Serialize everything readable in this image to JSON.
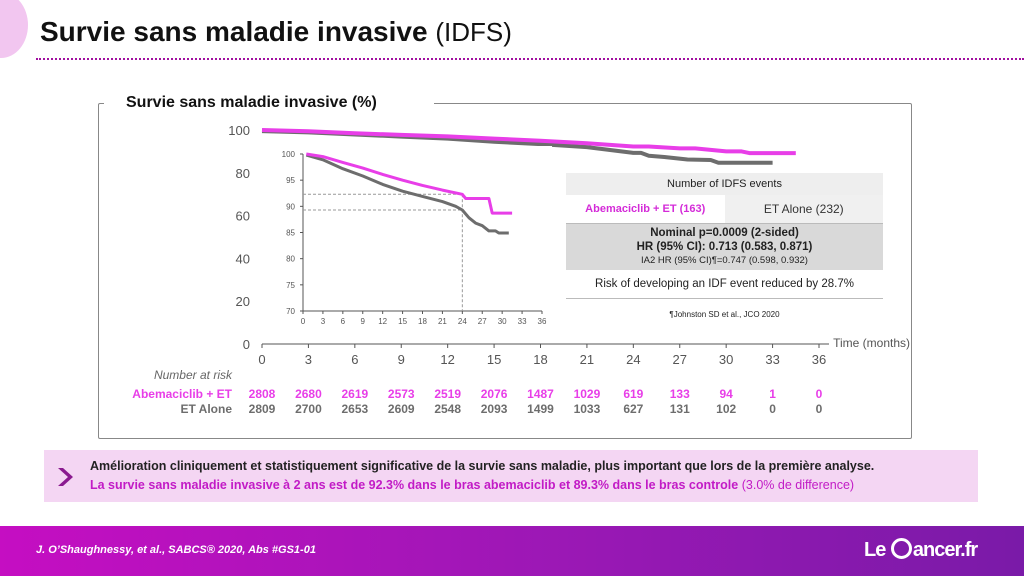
{
  "slide": {
    "title_main": "Survie sans maladie invasive",
    "title_sub": "(IDFS)"
  },
  "panel": {
    "title": "Survie sans maladie invasive (%)"
  },
  "colors": {
    "abemaciclib": "#e83ee8",
    "et_alone": "#6d6d6d",
    "accent": "#c21bc6"
  },
  "chart_data": [
    {
      "type": "line",
      "name": "main",
      "xlabel": "Time (months)",
      "ylabel": "Survie sans maladie invasive (%)",
      "xlim": [
        0,
        36
      ],
      "ylim": [
        0,
        100
      ],
      "x_ticks": [
        0,
        3,
        6,
        9,
        12,
        15,
        18,
        21,
        24,
        27,
        30,
        33,
        36
      ],
      "y_ticks": [
        0,
        20,
        40,
        60,
        80,
        100
      ],
      "series": [
        {
          "name": "Abemaciclib + ET",
          "color": "#e83ee8",
          "points": [
            [
              0,
              100
            ],
            [
              3,
              99.4
            ],
            [
              6,
              98.5
            ],
            [
              9,
              97.7
            ],
            [
              12,
              97
            ],
            [
              15,
              96
            ],
            [
              18,
              95
            ],
            [
              21,
              93.8
            ],
            [
              24,
              92.3
            ],
            [
              25,
              92.3
            ],
            [
              27,
              91.4
            ],
            [
              28,
              91.4
            ],
            [
              30,
              90
            ],
            [
              31,
              90
            ],
            [
              31.5,
              89.2
            ],
            [
              33,
              89.2
            ],
            [
              34.5,
              89.2
            ]
          ]
        },
        {
          "name": "ET Alone",
          "color": "#6d6d6d",
          "points": [
            [
              0,
              99.5
            ],
            [
              3,
              98.9
            ],
            [
              6,
              97.9
            ],
            [
              9,
              96.9
            ],
            [
              12,
              96
            ],
            [
              15,
              94.5
            ],
            [
              18,
              93.4
            ],
            [
              21,
              92
            ],
            [
              24,
              89.3
            ],
            [
              24.5,
              89.3
            ],
            [
              25,
              88
            ],
            [
              26,
              87.4
            ],
            [
              27.5,
              86.2
            ],
            [
              29,
              86
            ],
            [
              29.5,
              84.7
            ],
            [
              33,
              84.7
            ]
          ]
        }
      ]
    },
    {
      "type": "line",
      "name": "inset",
      "xlim": [
        0,
        36
      ],
      "ylim": [
        70,
        100
      ],
      "x_ticks": [
        0,
        3,
        6,
        9,
        12,
        15,
        18,
        21,
        24,
        27,
        30,
        33,
        36
      ],
      "y_ticks": [
        70,
        75,
        80,
        85,
        90,
        95,
        100
      ],
      "reference_lines": [
        {
          "y": 92.3,
          "x_end": 24
        },
        {
          "y": 89.3,
          "x_end": 24
        }
      ],
      "series": [
        {
          "name": "Abemaciclib + ET",
          "color": "#e83ee8",
          "points": [
            [
              0.5,
              100
            ],
            [
              3,
              99.5
            ],
            [
              6,
              98.4
            ],
            [
              9,
              97.3
            ],
            [
              12,
              96.1
            ],
            [
              15,
              95
            ],
            [
              18,
              94
            ],
            [
              21,
              93.1
            ],
            [
              24,
              92.3
            ],
            [
              24.5,
              91.5
            ],
            [
              27,
              91.5
            ],
            [
              28,
              91.5
            ],
            [
              28.5,
              88.7
            ],
            [
              31,
              88.7
            ],
            [
              31.5,
              88.7
            ]
          ]
        },
        {
          "name": "ET Alone",
          "color": "#6d6d6d",
          "points": [
            [
              0.5,
              99.8
            ],
            [
              3,
              98.9
            ],
            [
              6,
              97.2
            ],
            [
              9,
              95.8
            ],
            [
              12,
              94.2
            ],
            [
              15,
              92.9
            ],
            [
              18,
              91.9
            ],
            [
              21,
              90.9
            ],
            [
              23,
              90
            ],
            [
              24,
              89.3
            ],
            [
              25,
              87.8
            ],
            [
              26,
              86.8
            ],
            [
              27,
              86.3
            ],
            [
              28,
              85.3
            ],
            [
              29,
              85.3
            ],
            [
              29.5,
              84.9
            ],
            [
              31,
              84.9
            ]
          ]
        }
      ]
    }
  ],
  "risk_table": {
    "heading": "Number at risk",
    "months": [
      0,
      3,
      6,
      9,
      12,
      15,
      18,
      21,
      24,
      27,
      30,
      33,
      36
    ],
    "rows": [
      {
        "label": "Abemaciclib + ET",
        "values": [
          "2808",
          "2680",
          "2619",
          "2573",
          "2519",
          "2076",
          "1487",
          "1029",
          "619",
          "133",
          "94",
          "1",
          "0"
        ]
      },
      {
        "label": "ET Alone",
        "values": [
          "2809",
          "2700",
          "2653",
          "2609",
          "2548",
          "2093",
          "1499",
          "1033",
          "627",
          "131",
          "102",
          "0",
          "0"
        ]
      }
    ]
  },
  "events_table": {
    "header": "Number of IDFS events",
    "arm1": "Abemaciclib + ET (163)",
    "arm2": "ET Alone (232)",
    "stat1": "Nominal p=0.0009 (2-sided)",
    "stat2": "HR (95% CI): 0.713 (0.583, 0.871)",
    "stat3": "IA2 HR (95% CI)¶=0.747 (0.598, 0.932)",
    "risk": "Risk of developing an IDF event reduced by 28.7%",
    "ref": "¶Johnston SD et al., JCO 2020"
  },
  "callout": {
    "line1": "Amélioration cliniquement et statistiquement significative de la survie sans maladie, plus important que lors de la première analyse.",
    "line2": "La survie sans maladie invasive à 2 ans est de 92.3% dans le bras abemaciclib et 89.3% dans le bras controle",
    "line2_note": "(3.0% de difference)"
  },
  "footer": {
    "citation": "J. O’Shaughnessy, et al., SABCS® 2020, Abs #GS1-01",
    "logo_pre": "Le",
    "logo_post": "ancer.fr"
  }
}
